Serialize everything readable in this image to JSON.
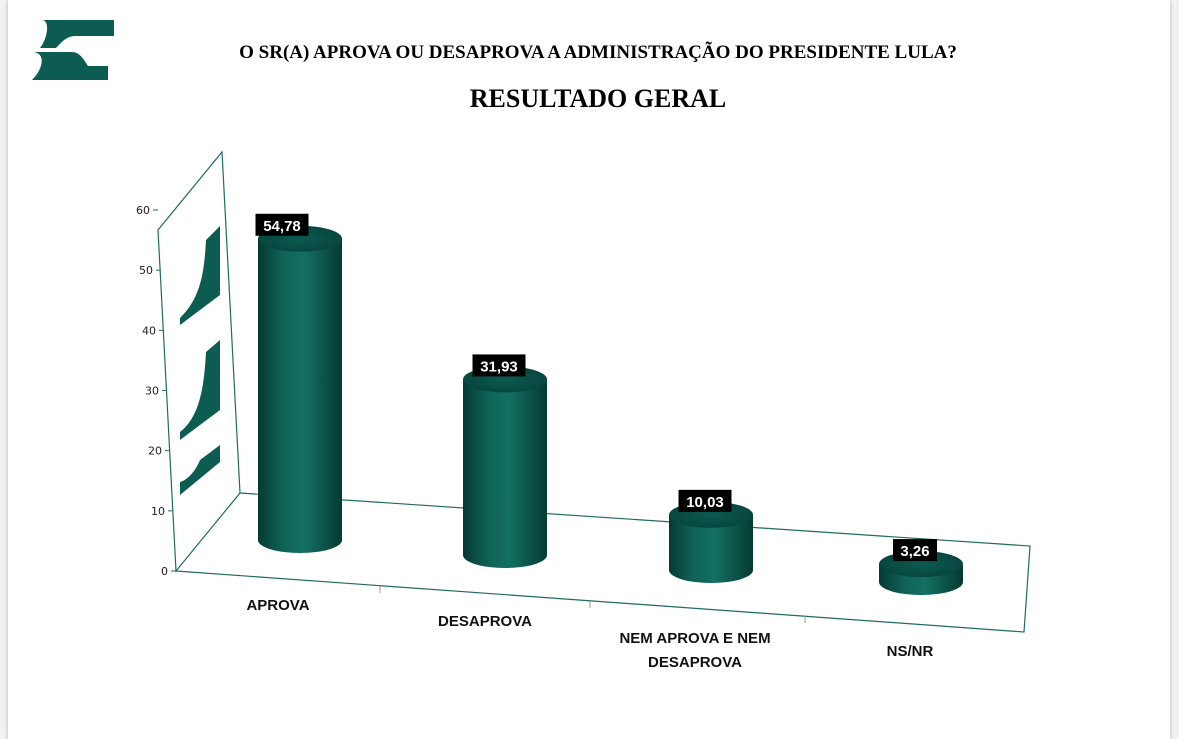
{
  "header": {
    "question": "O SR(A) APROVA OU DESAPROVA A ADMINISTRAÇÃO DO PRESIDENTE LULA?",
    "subtitle": "RESULTADO GERAL"
  },
  "colors": {
    "bar": "#0d5c52",
    "bar_dark": "#063a33",
    "bar_light": "#2b8a7c",
    "frame": "#1f6b62",
    "label_bg": "#000000"
  },
  "logo": {
    "icon": "company-logo-icon"
  },
  "chart_data": {
    "type": "bar",
    "style": "3d-cylinder",
    "title": "RESULTADO GERAL",
    "categories": [
      "APROVA",
      "DESAPROVA",
      "NEM APROVA E NEM DESAPROVA",
      "NS/NR"
    ],
    "category_lines": [
      [
        "APROVA"
      ],
      [
        "DESAPROVA"
      ],
      [
        "NEM APROVA E NEM",
        "DESAPROVA"
      ],
      [
        "NS/NR"
      ]
    ],
    "values": [
      54.78,
      31.93,
      10.03,
      3.26
    ],
    "value_labels": [
      "54,78",
      "31,93",
      "10,03",
      "3,26"
    ],
    "ylim": [
      0,
      60
    ],
    "yticks": [
      0,
      10,
      20,
      30,
      40,
      50,
      60
    ],
    "xlabel": "",
    "ylabel": "",
    "legend": "none",
    "grid": false
  }
}
